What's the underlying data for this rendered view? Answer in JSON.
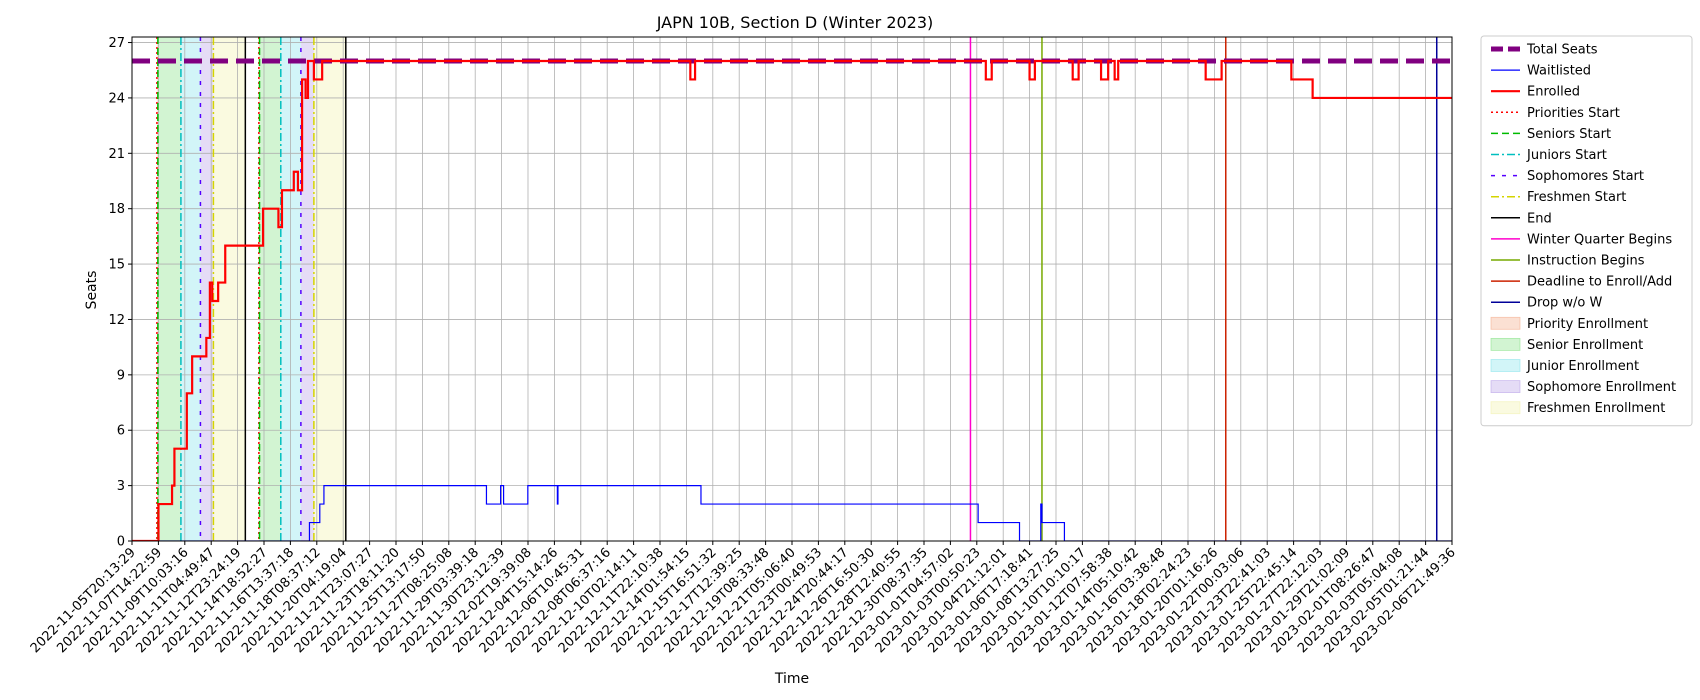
{
  "chart_data": {
    "type": "line",
    "title": "JAPN 10B, Section D (Winter 2023)",
    "xlabel": "Time",
    "ylabel": "Seats",
    "ylim": [
      0,
      27.3
    ],
    "yticks": [
      0,
      3,
      6,
      9,
      12,
      15,
      18,
      21,
      24,
      27
    ],
    "xlim": [
      "2022-11-05T20:13:29",
      "2023-02-06T21:49:36"
    ],
    "xtick_labels": [
      "2022-11-05T20:13:29",
      "2022-11-07T14:22:59",
      "2022-11-09T10:03:16",
      "2022-11-11T04:49:47",
      "2022-11-12T23:24:19",
      "2022-11-14T18:52:27",
      "2022-11-16T13:37:18",
      "2022-11-18T08:37:12",
      "2022-11-20T04:19:04",
      "2022-11-21T23:07:27",
      "2022-11-23T18:11:20",
      "2022-11-25T13:17:50",
      "2022-11-27T08:25:08",
      "2022-11-29T03:39:18",
      "2022-11-30T23:12:39",
      "2022-12-02T19:39:08",
      "2022-12-04T15:14:26",
      "2022-12-06T10:45:31",
      "2022-12-08T06:37:16",
      "2022-12-10T02:14:11",
      "2022-12-11T22:10:38",
      "2022-12-14T01:54:15",
      "2022-12-15T16:51:32",
      "2022-12-17T12:39:25",
      "2022-12-19T08:33:48",
      "2022-12-21T05:06:40",
      "2022-12-23T00:49:53",
      "2022-12-24T20:44:17",
      "2022-12-26T16:50:30",
      "2022-12-28T12:40:55",
      "2022-12-30T08:37:35",
      "2023-01-01T04:57:02",
      "2023-01-03T00:50:23",
      "2023-01-04T21:12:01",
      "2023-01-06T17:18:41",
      "2023-01-08T13:27:25",
      "2023-01-10T10:10:17",
      "2023-01-12T07:58:38",
      "2023-01-14T05:10:42",
      "2023-01-16T03:38:48",
      "2023-01-18T02:24:23",
      "2023-01-20T01:16:26",
      "2023-01-22T00:03:06",
      "2023-01-23T22:41:03",
      "2023-01-25T22:45:14",
      "2023-01-27T22:12:03",
      "2023-01-29T21:02:09",
      "2023-02-01T08:26:47",
      "2023-02-03T05:04:08",
      "2023-02-05T01:21:44",
      "2023-02-06T21:49:36"
    ],
    "grid": true,
    "legend_placement": "outside upper right",
    "series": [
      {
        "name": "Total Seats",
        "color": "#800080",
        "style": "dashed-thick",
        "x": [
          "2022-11-05T20:13:29",
          "2023-02-06T21:49:36"
        ],
        "y": [
          26,
          26
        ]
      },
      {
        "name": "Waitlisted",
        "color": "#0000ff",
        "style": "solid-thin",
        "x": [
          "2022-11-05T20:13:29",
          "2022-11-18T08:30:00",
          "2022-11-18T08:30:00",
          "2022-11-19T02:00:00",
          "2022-11-19T02:00:00",
          "2022-11-19T09:00:00",
          "2022-11-19T09:00:00",
          "2022-11-19T14:00:00",
          "2022-11-19T14:00:00",
          "2022-11-30T20:00:00",
          "2022-11-30T20:00:00",
          "2022-12-01T20:00:00",
          "2022-12-01T20:00:00",
          "2022-12-02T01:00:00",
          "2022-12-02T01:00:00",
          "2022-12-03T18:00:00",
          "2022-12-03T18:00:00",
          "2022-12-05T20:00:00",
          "2022-12-05T20:00:00",
          "2022-12-05T21:00:00",
          "2022-12-05T21:00:00",
          "2022-12-15T23:00:00",
          "2022-12-15T23:00:00",
          "2023-01-04T12:00:00",
          "2023-01-04T12:00:00",
          "2023-01-07T10:00:00",
          "2023-01-07T10:00:00",
          "2023-01-08T22:00:00",
          "2023-01-08T22:00:00",
          "2023-01-09T00:00:00",
          "2023-01-09T00:00:00",
          "2023-01-10T14:00:00",
          "2023-01-10T14:00:00",
          "2023-02-06T21:49:36"
        ],
        "y": [
          0,
          0,
          1,
          1,
          2,
          2,
          3,
          3,
          3,
          3,
          2,
          2,
          3,
          3,
          2,
          2,
          3,
          3,
          2,
          2,
          3,
          3,
          2,
          2,
          1,
          1,
          0,
          0,
          2,
          2,
          1,
          1,
          0,
          0
        ]
      },
      {
        "name": "Enrolled",
        "color": "#ff0000",
        "style": "solid-thick",
        "x": [
          "2022-11-05T20:13:29",
          "2022-11-07T17:00:00",
          "2022-11-07T17:00:00",
          "2022-11-08T16:00:00",
          "2022-11-08T16:00:00",
          "2022-11-08T20:00:00",
          "2022-11-08T20:00:00",
          "2022-11-09T17:00:00",
          "2022-11-09T17:00:00",
          "2022-11-10T02:00:00",
          "2022-11-10T02:00:00",
          "2022-11-11T02:00:00",
          "2022-11-11T02:00:00",
          "2022-11-11T08:00:00",
          "2022-11-11T08:00:00",
          "2022-11-11T12:00:00",
          "2022-11-11T12:00:00",
          "2022-11-11T22:00:00",
          "2022-11-11T22:00:00",
          "2022-11-12T10:00:00",
          "2022-11-12T10:00:00",
          "2022-11-12T19:00:00",
          "2022-11-12T19:00:00",
          "2022-11-15T02:00:00",
          "2022-11-15T02:00:00",
          "2022-11-16T04:00:00",
          "2022-11-16T04:00:00",
          "2022-11-16T10:00:00",
          "2022-11-16T10:00:00",
          "2022-11-17T06:00:00",
          "2022-11-17T06:00:00",
          "2022-11-17T13:00:00",
          "2022-11-17T13:00:00",
          "2022-11-17T20:00:00",
          "2022-11-17T20:00:00",
          "2022-11-18T02:00:00",
          "2022-11-18T02:00:00",
          "2022-11-18T06:00:00",
          "2022-11-18T06:00:00",
          "2022-11-18T16:00:00",
          "2022-11-18T16:00:00",
          "2022-11-19T06:00:00",
          "2022-11-19T06:00:00",
          "2022-11-19T10:00:00",
          "2022-11-19T10:00:00",
          "2022-12-15T05:00:00",
          "2022-12-15T05:00:00",
          "2022-12-15T13:00:00",
          "2022-12-15T13:00:00",
          "2023-01-05T01:00:00",
          "2023-01-05T01:00:00",
          "2023-01-05T11:00:00",
          "2023-01-05T11:00:00",
          "2023-01-08T03:00:00",
          "2023-01-08T03:00:00",
          "2023-01-08T12:00:00",
          "2023-01-08T12:00:00",
          "2023-01-11T04:00:00",
          "2023-01-11T04:00:00",
          "2023-01-11T14:00:00",
          "2023-01-11T14:00:00",
          "2023-01-13T04:00:00",
          "2023-01-13T04:00:00",
          "2023-01-13T16:00:00",
          "2023-01-13T16:00:00",
          "2023-01-14T03:00:00",
          "2023-01-14T03:00:00",
          "2023-01-14T09:00:00",
          "2023-01-14T09:00:00",
          "2023-01-20T13:00:00",
          "2023-01-20T13:00:00",
          "2023-01-21T16:00:00",
          "2023-01-21T16:00:00",
          "2023-01-26T14:00:00",
          "2023-01-26T14:00:00",
          "2023-01-28T02:00:00",
          "2023-01-28T02:00:00",
          "2023-02-06T21:49:36"
        ],
        "y": [
          0,
          0,
          2,
          2,
          3,
          3,
          5,
          5,
          8,
          8,
          10,
          10,
          11,
          11,
          14,
          14,
          13,
          13,
          14,
          14,
          16,
          16,
          16,
          16,
          18,
          18,
          17,
          17,
          19,
          19,
          20,
          20,
          19,
          19,
          25,
          25,
          24,
          24,
          26,
          26,
          25,
          25,
          26,
          26,
          26,
          26,
          25,
          25,
          26,
          26,
          25,
          25,
          26,
          26,
          25,
          25,
          26,
          26,
          25,
          25,
          26,
          26,
          25,
          25,
          26,
          26,
          25,
          25,
          26,
          26,
          25,
          25,
          26,
          26,
          25,
          25,
          24,
          24
        ]
      }
    ],
    "vertical_lines": [
      {
        "name": "Priorities Start",
        "color": "#ff0000",
        "style": "dotted",
        "x": [
          "2022-11-07T14:22:59",
          "2022-11-14T18:52:27"
        ]
      },
      {
        "name": "Seniors Start",
        "color": "#00bb00",
        "style": "dashed",
        "x": [
          "2022-11-07T16:00:00",
          "2022-11-14T20:00:00"
        ]
      },
      {
        "name": "Juniors Start",
        "color": "#00bfbf",
        "style": "dashdot",
        "x": [
          "2022-11-09T07:00:00",
          "2022-11-16T08:00:00"
        ]
      },
      {
        "name": "Sophomores Start",
        "color": "#5500ff",
        "style": "loose-dashed",
        "x": [
          "2022-11-10T16:00:00",
          "2022-11-17T18:00:00"
        ]
      },
      {
        "name": "Freshmen Start",
        "color": "#d4d400",
        "style": "dashdot",
        "x": [
          "2022-11-11T14:00:00",
          "2022-11-18T16:00:00"
        ]
      },
      {
        "name": "End",
        "color": "#000000",
        "style": "solid",
        "x": [
          "2022-11-13T20:00:00",
          "2022-11-20T22:00:00"
        ]
      },
      {
        "name": "Winter Quarter Begins",
        "color": "#ff00cc",
        "style": "solid",
        "x": [
          "2023-01-03T23:00:00"
        ]
      },
      {
        "name": "Instruction Begins",
        "color": "#77aa00",
        "style": "solid",
        "x": [
          "2023-01-09T00:00:00"
        ]
      },
      {
        "name": "Deadline to Enroll/Add",
        "color": "#cc2200",
        "style": "solid",
        "x": [
          "2023-01-21T23:00:00"
        ]
      },
      {
        "name": "Drop w/o W",
        "color": "#000099",
        "style": "solid",
        "x": [
          "2023-02-05T20:00:00"
        ]
      }
    ],
    "shaded_regions": [
      {
        "name": "Priority Enrollment",
        "color": "#f4a582",
        "ranges": [
          [
            "2022-11-07T14:22:59",
            "2022-11-07T16:00:00"
          ],
          [
            "2022-11-14T18:52:27",
            "2022-11-14T20:00:00"
          ]
        ]
      },
      {
        "name": "Senior Enrollment",
        "color": "#7fe07f",
        "ranges": [
          [
            "2022-11-07T16:00:00",
            "2022-11-09T07:00:00"
          ],
          [
            "2022-11-14T20:00:00",
            "2022-11-16T08:00:00"
          ]
        ]
      },
      {
        "name": "Junior Enrollment",
        "color": "#7fe3ea",
        "ranges": [
          [
            "2022-11-09T07:00:00",
            "2022-11-10T16:00:00"
          ],
          [
            "2022-11-16T08:00:00",
            "2022-11-17T18:00:00"
          ]
        ]
      },
      {
        "name": "Sophomore Enrollment",
        "color": "#b49be6",
        "ranges": [
          [
            "2022-11-10T16:00:00",
            "2022-11-11T14:00:00"
          ],
          [
            "2022-11-17T18:00:00",
            "2022-11-18T16:00:00"
          ]
        ]
      },
      {
        "name": "Freshmen Enrollment",
        "color": "#f0f0a6",
        "ranges": [
          [
            "2022-11-11T14:00:00",
            "2022-11-13T20:00:00"
          ],
          [
            "2022-11-18T16:00:00",
            "2022-11-20T22:00:00"
          ]
        ]
      }
    ],
    "legend": [
      {
        "label": "Total Seats",
        "kind": "line",
        "color": "#800080",
        "style": "dashed-thick"
      },
      {
        "label": "Waitlisted",
        "kind": "line",
        "color": "#0000ff",
        "style": "solid-thin"
      },
      {
        "label": "Enrolled",
        "kind": "line",
        "color": "#ff0000",
        "style": "solid-thick"
      },
      {
        "label": "Priorities Start",
        "kind": "line",
        "color": "#ff0000",
        "style": "dotted"
      },
      {
        "label": "Seniors Start",
        "kind": "line",
        "color": "#00bb00",
        "style": "dashed"
      },
      {
        "label": "Juniors Start",
        "kind": "line",
        "color": "#00bfbf",
        "style": "dashdot"
      },
      {
        "label": "Sophomores Start",
        "kind": "line",
        "color": "#5500ff",
        "style": "loose-dashed"
      },
      {
        "label": "Freshmen Start",
        "kind": "line",
        "color": "#d4d400",
        "style": "dashdot"
      },
      {
        "label": "End",
        "kind": "line",
        "color": "#000000",
        "style": "solid"
      },
      {
        "label": "Winter Quarter Begins",
        "kind": "line",
        "color": "#ff00cc",
        "style": "solid"
      },
      {
        "label": "Instruction Begins",
        "kind": "line",
        "color": "#77aa00",
        "style": "solid"
      },
      {
        "label": "Deadline to Enroll/Add",
        "kind": "line",
        "color": "#cc2200",
        "style": "solid"
      },
      {
        "label": "Drop w/o W",
        "kind": "line",
        "color": "#000099",
        "style": "solid"
      },
      {
        "label": "Priority Enrollment",
        "kind": "patch",
        "color": "#f4a582"
      },
      {
        "label": "Senior Enrollment",
        "kind": "patch",
        "color": "#7fe07f"
      },
      {
        "label": "Junior Enrollment",
        "kind": "patch",
        "color": "#7fe3ea"
      },
      {
        "label": "Sophomore Enrollment",
        "kind": "patch",
        "color": "#b49be6"
      },
      {
        "label": "Freshmen Enrollment",
        "kind": "patch",
        "color": "#f0f0a6"
      }
    ]
  }
}
